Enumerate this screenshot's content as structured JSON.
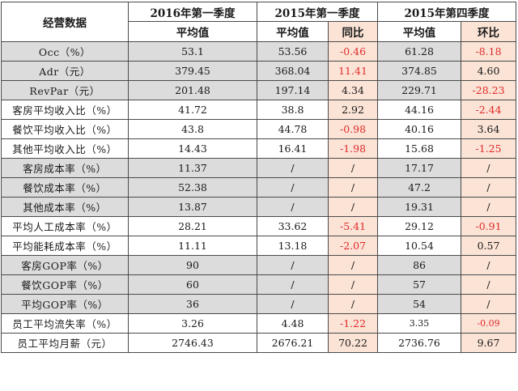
{
  "header": {
    "corner": "经营数据",
    "period_2016q1": "2016年第一季度",
    "period_2015q1": "2015年第一季度",
    "period_2015q4": "2015年第四季度",
    "avg": "平均值",
    "yoy": "同比",
    "qoq": "环比"
  },
  "rows": [
    {
      "label": "Occ（%）",
      "v2016q1": "53.1",
      "v2015q1": "53.56",
      "yoy": "-0.46",
      "v2015q4": "61.28",
      "qoq": "-8.18"
    },
    {
      "label": "Adr（元）",
      "v2016q1": "379.45",
      "v2015q1": "368.04",
      "yoy": "11.41",
      "v2015q4": "374.85",
      "qoq": "4.60"
    },
    {
      "label": "RevPar（元）",
      "v2016q1": "201.48",
      "v2015q1": "197.14",
      "yoy": "4.34",
      "v2015q4": "229.71",
      "qoq": "-28.23"
    },
    {
      "label": "客房平均收入比（%）",
      "v2016q1": "41.72",
      "v2015q1": "38.8",
      "yoy": "2.92",
      "v2015q4": "44.16",
      "qoq": "-2.44"
    },
    {
      "label": "餐饮平均收入比（%）",
      "v2016q1": "43.8",
      "v2015q1": "44.78",
      "yoy": "-0.98",
      "v2015q4": "40.16",
      "qoq": "3.64"
    },
    {
      "label": "其他平均收入比（%）",
      "v2016q1": "14.43",
      "v2015q1": "16.41",
      "yoy": "-1.98",
      "v2015q4": "15.68",
      "qoq": "-1.25"
    },
    {
      "label": "客房成本率（%）",
      "v2016q1": "11.37",
      "v2015q1": "/",
      "yoy": "/",
      "v2015q4": "17.17",
      "qoq": "/"
    },
    {
      "label": "餐饮成本率（%）",
      "v2016q1": "52.38",
      "v2015q1": "/",
      "yoy": "/",
      "v2015q4": "47.2",
      "qoq": "/"
    },
    {
      "label": "其他成本率（%）",
      "v2016q1": "13.87",
      "v2015q1": "/",
      "yoy": "/",
      "v2015q4": "19.31",
      "qoq": "/"
    },
    {
      "label": "平均人工成本率（%）",
      "v2016q1": "28.21",
      "v2015q1": "33.62",
      "yoy": "-5.41",
      "v2015q4": "29.12",
      "qoq": "-0.91"
    },
    {
      "label": "平均能耗成本率（%）",
      "v2016q1": "11.11",
      "v2015q1": "13.18",
      "yoy": "-2.07",
      "v2015q4": "10.54",
      "qoq": "0.57"
    },
    {
      "label": "客房GOP率（%）",
      "v2016q1": "90",
      "v2015q1": "/",
      "yoy": "/",
      "v2015q4": "86",
      "qoq": "/"
    },
    {
      "label": "餐饮GOP率（%）",
      "v2016q1": "60",
      "v2015q1": "/",
      "yoy": "/",
      "v2015q4": "57",
      "qoq": "/"
    },
    {
      "label": "平均GOP率（%）",
      "v2016q1": "36",
      "v2015q1": "/",
      "yoy": "/",
      "v2015q4": "54",
      "qoq": "/"
    },
    {
      "label": "员工平均流失率（%）",
      "v2016q1": "3.26",
      "v2015q1": "4.48",
      "yoy": "-1.22",
      "v2015q4": "3.35",
      "qoq": "-0.09"
    },
    {
      "label": "员工平均月薪（元）",
      "v2016q1": "2746.43",
      "v2015q1": "2676.21",
      "yoy": "70.22",
      "v2015q4": "2736.76",
      "qoq": "9.67"
    }
  ],
  "colors": {
    "negative": "#e02a2a",
    "compare_fill": "#fbe3d6",
    "row_shade": "#dcdcdc"
  }
}
